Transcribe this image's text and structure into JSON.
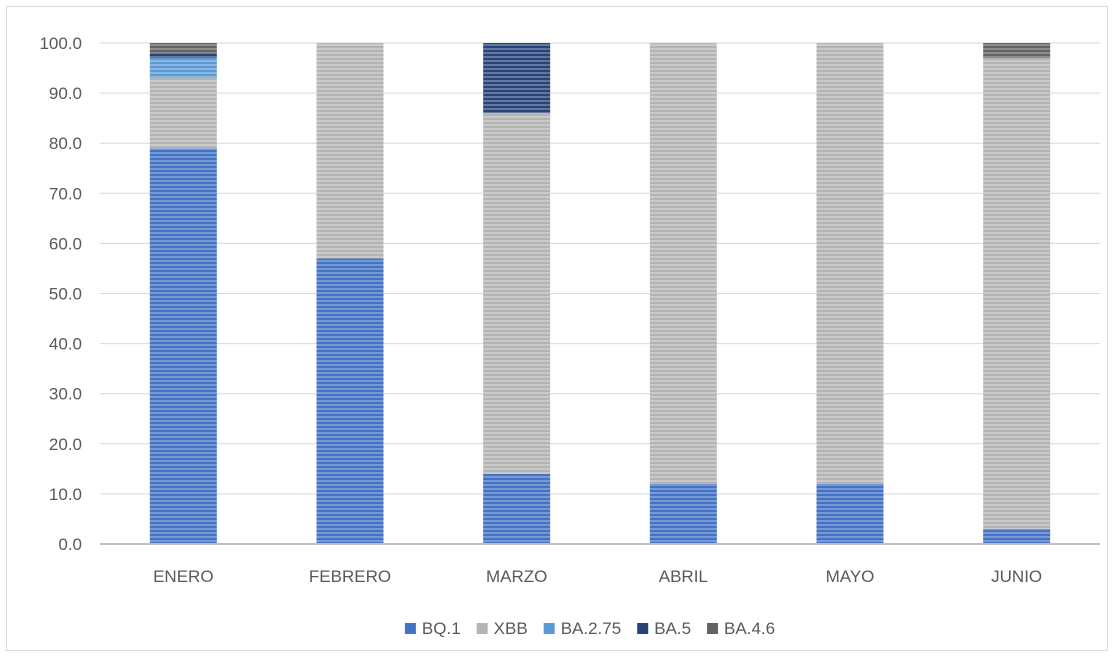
{
  "chart_data": {
    "type": "bar",
    "stacked": true,
    "title": "",
    "xlabel": "",
    "ylabel": "",
    "ylim": [
      0,
      100
    ],
    "yticks": [
      "0.0",
      "10.0",
      "20.0",
      "30.0",
      "40.0",
      "50.0",
      "60.0",
      "70.0",
      "80.0",
      "90.0",
      "100.0"
    ],
    "categories": [
      "ENERO",
      "FEBRERO",
      "MARZO",
      "ABRIL",
      "MAYO",
      "JUNIO"
    ],
    "series": [
      {
        "name": "BQ.1",
        "color": "#4472c4",
        "values": [
          79,
          57,
          14,
          12,
          12,
          3
        ]
      },
      {
        "name": "XBB",
        "color": "#b4b4b4",
        "values": [
          14,
          43,
          72,
          88,
          88,
          94
        ]
      },
      {
        "name": "BA.2.75",
        "color": "#5b9bd5",
        "values": [
          4,
          0,
          0,
          0,
          0,
          0
        ]
      },
      {
        "name": "BA.5",
        "color": "#264478",
        "values": [
          1,
          0,
          14,
          0,
          0,
          0
        ]
      },
      {
        "name": "BA.4.6",
        "color": "#636363",
        "values": [
          2,
          0,
          0,
          0,
          0,
          3
        ]
      }
    ],
    "grid": true,
    "legend_position": "bottom"
  }
}
